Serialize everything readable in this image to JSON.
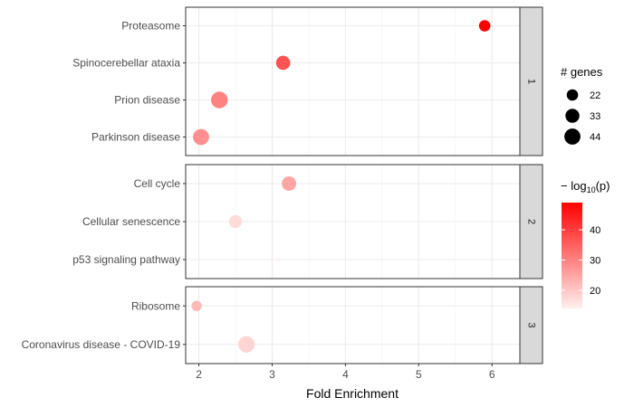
{
  "chart_data": {
    "type": "scatter",
    "xlabel": "Fold Enrichment",
    "xlim": [
      1.82,
      6.38
    ],
    "x_ticks": [
      "2",
      "3",
      "4",
      "5",
      "6"
    ],
    "x_tick_values": [
      2,
      3,
      4,
      5,
      6
    ],
    "grid": true,
    "legend_placement": "right",
    "size_legend": {
      "title": "# genes",
      "entries": [
        {
          "label": "22",
          "value": 22
        },
        {
          "label": "33",
          "value": 33
        },
        {
          "label": "44",
          "value": 44
        }
      ]
    },
    "color_legend": {
      "title_prefix": "− log",
      "title_sub": "10",
      "title_suffix": "(p)",
      "ticks": [
        {
          "label": "40",
          "value": 40
        },
        {
          "label": "30",
          "value": 30
        },
        {
          "label": "20",
          "value": 20
        }
      ],
      "range": [
        14,
        49
      ],
      "low_color": "#fff0ee",
      "high_color": "#ff0000"
    },
    "facets": [
      {
        "label": "1",
        "points": [
          {
            "category": "Proteasome",
            "x": 5.9,
            "genes": 22,
            "neglog10p": 49
          },
          {
            "category": "Spinocerebellar ataxia",
            "x": 3.15,
            "genes": 34,
            "neglog10p": 37
          },
          {
            "category": "Prion disease",
            "x": 2.28,
            "genes": 47,
            "neglog10p": 30
          },
          {
            "category": "Parkinson disease",
            "x": 2.03,
            "genes": 44,
            "neglog10p": 28
          }
        ]
      },
      {
        "label": "2",
        "points": [
          {
            "category": "Cell cycle",
            "x": 3.23,
            "genes": 35,
            "neglog10p": 25
          },
          {
            "category": "Cellular senescence",
            "x": 2.5,
            "genes": 28,
            "neglog10p": 17
          },
          {
            "category": "p53 signaling pathway",
            "x": 3.08,
            "genes": 3,
            "neglog10p": 14
          }
        ]
      },
      {
        "label": "3",
        "points": [
          {
            "category": "Ribosome",
            "x": 1.97,
            "genes": 18,
            "neglog10p": 22
          },
          {
            "category": "Coronavirus disease - COVID-19",
            "x": 2.65,
            "genes": 46,
            "neglog10p": 18
          }
        ]
      }
    ]
  }
}
